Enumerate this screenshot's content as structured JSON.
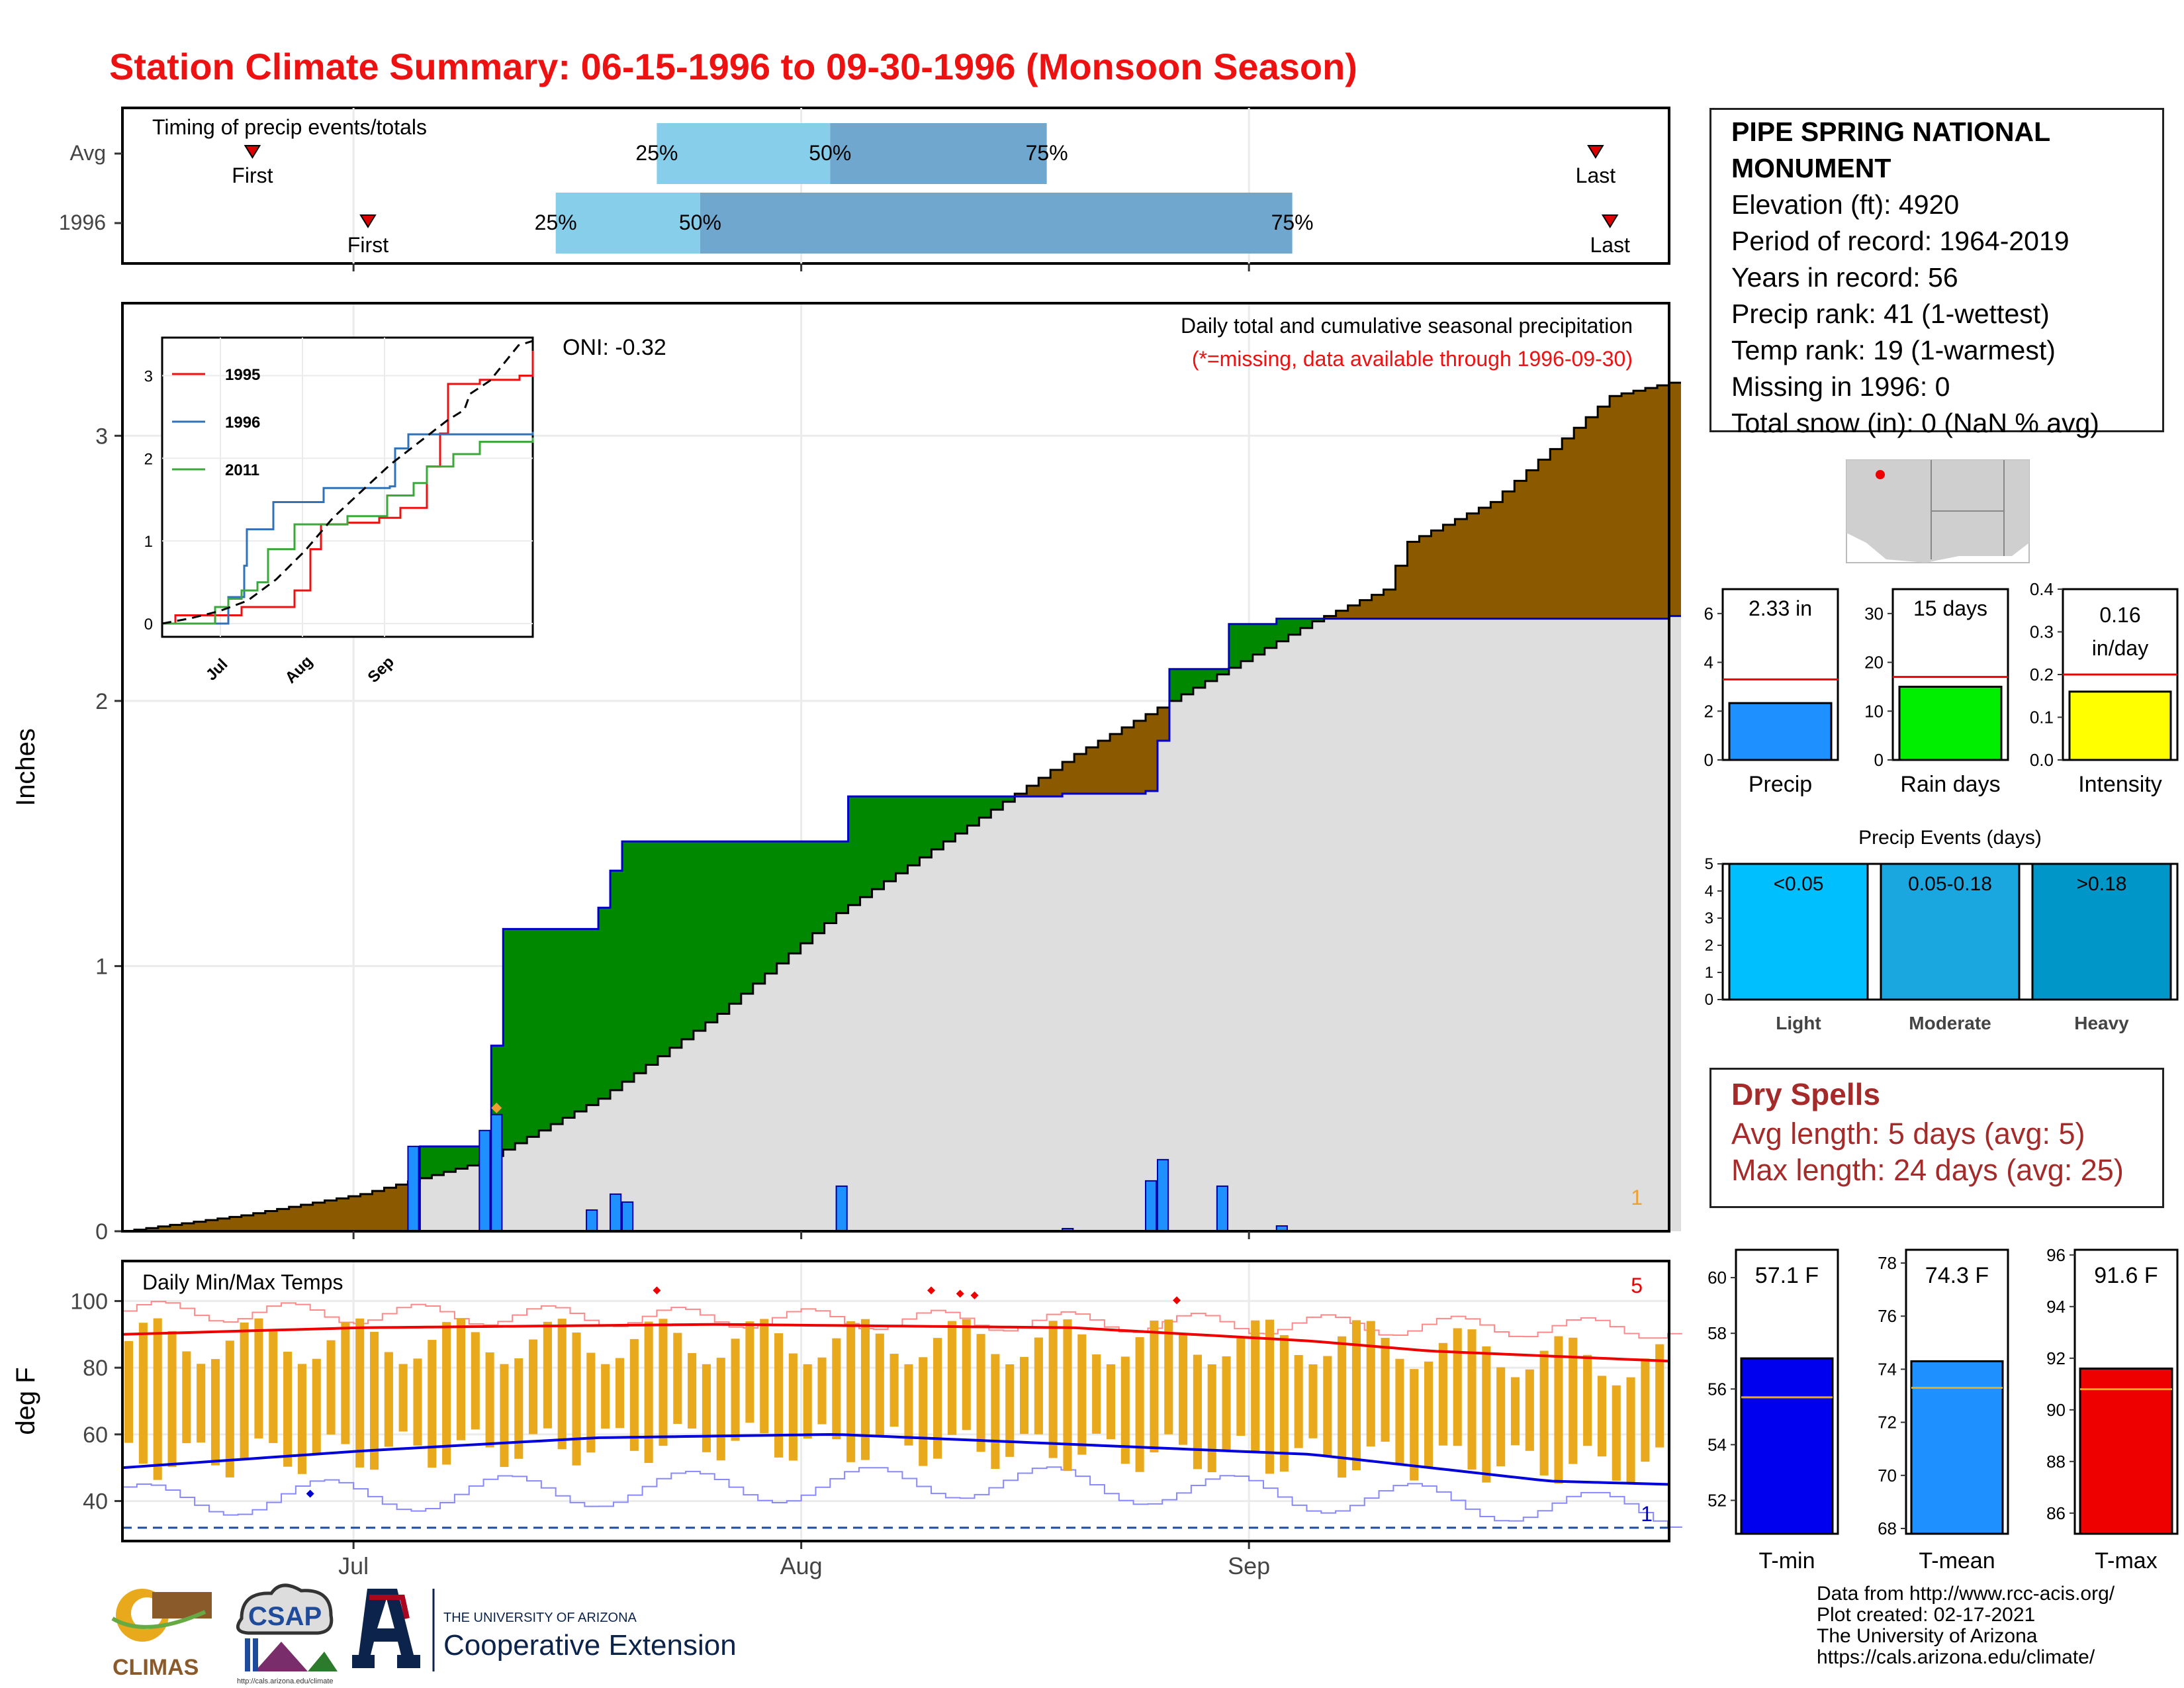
{
  "title": "Station Climate Summary: 06-15-1996 to 09-30-1996 (Monsoon Season)",
  "station": {
    "name": "PIPE SPRING NATIONAL MONUMENT",
    "lines": [
      "Elevation (ft): 4920",
      "Period of record: 1964-2019",
      "Years in record: 56",
      "Precip rank: 41 (1-wettest)",
      "Temp rank: 19 (1-warmest)",
      "Missing in 1996: 0",
      "Total snow (in): 0 (NaN % avg)"
    ]
  },
  "dry_spells": {
    "heading": "Dry Spells",
    "avg_line": "Avg length: 5 days (avg: 5)",
    "max_line": "Max length: 24 days (avg: 25)"
  },
  "credits": [
    "Data from http://www.rcc-acis.org/",
    "Plot created: 02-17-2021",
    "The University of Arizona",
    "https://cals.arizona.edu/climate/"
  ],
  "logos": {
    "climas": "CLIMAS",
    "csap": "CSAP",
    "csap_url": "http://cals.arizona.edu/climate",
    "ua_small": "THE UNIVERSITY OF ARIZONA",
    "ua_big": "Cooperative Extension"
  },
  "colors": {
    "title": "#ee1111",
    "avg_area": "#8b5a00",
    "surplus_area": "#008800",
    "daily_bar": "#1e90ff",
    "timing_light": "#87ceeb",
    "timing_dark": "#6fa7cf",
    "tmax": "#ee0000",
    "tmin": "#0000dd",
    "temp_bar": "#e8a91c",
    "dry_text": "#a52a2a"
  },
  "chart_data": [
    {
      "type": "bar",
      "panel": "timing",
      "title": "Timing of precip events/totals",
      "categories": [
        "Avg",
        "1996"
      ],
      "x_ticks": [
        "Jul",
        "Aug",
        "Sep"
      ],
      "series": [
        {
          "name": "Avg",
          "first": "06-24",
          "p25": "07-22",
          "p50": "08-03",
          "p75": "08-18",
          "last": "09-25"
        },
        {
          "name": "1996",
          "first": "07-02",
          "p25": "07-15",
          "p50": "07-25",
          "p75": "09-04",
          "last": "09-26"
        }
      ],
      "percent_labels": [
        "25%",
        "50%",
        "75%"
      ],
      "marker_labels": [
        "First",
        "Last"
      ]
    },
    {
      "type": "area",
      "panel": "precip",
      "title": "Daily total and cumulative seasonal precipitation",
      "subtitle": "(*=missing, data available through 1996-09-30)",
      "annotation": "ONI: -0.32",
      "corner_count": "1",
      "ylabel": "Inches",
      "ylim": [
        0,
        3.5
      ],
      "yticks": [
        0,
        1,
        2,
        3
      ],
      "x_ticks": [
        "Jul",
        "Aug",
        "Sep"
      ],
      "avg_cumulative_points": [
        [
          0,
          0
        ],
        [
          10,
          0.06
        ],
        [
          20,
          0.14
        ],
        [
          30,
          0.26
        ],
        [
          35,
          0.38
        ],
        [
          40,
          0.5
        ],
        [
          50,
          0.82
        ],
        [
          60,
          1.2
        ],
        [
          70,
          1.5
        ],
        [
          80,
          1.8
        ],
        [
          90,
          2.05
        ],
        [
          100,
          2.3
        ],
        [
          106,
          2.42
        ],
        [
          108,
          2.6
        ],
        [
          115,
          2.75
        ],
        [
          120,
          2.95
        ],
        [
          125,
          3.15
        ],
        [
          130,
          3.2
        ]
      ],
      "daily_precip": [
        {
          "day": 24,
          "value": 0.32
        },
        {
          "day": 30,
          "value": 0.38
        },
        {
          "day": 31,
          "value": 0.44
        },
        {
          "day": 39,
          "value": 0.08
        },
        {
          "day": 41,
          "value": 0.14
        },
        {
          "day": 42,
          "value": 0.11
        },
        {
          "day": 60,
          "value": 0.17
        },
        {
          "day": 79,
          "value": 0.01
        },
        {
          "day": 86,
          "value": 0.19
        },
        {
          "day": 87,
          "value": 0.27
        },
        {
          "day": 92,
          "value": 0.17
        },
        {
          "day": 97,
          "value": 0.02
        }
      ],
      "cumulative_1996": [
        [
          0,
          0
        ],
        [
          24,
          0
        ],
        [
          25,
          0.32
        ],
        [
          30,
          0.32
        ],
        [
          31,
          0.7
        ],
        [
          32,
          1.14
        ],
        [
          39,
          1.14
        ],
        [
          40,
          1.22
        ],
        [
          41,
          1.36
        ],
        [
          42,
          1.47
        ],
        [
          60,
          1.47
        ],
        [
          61,
          1.64
        ],
        [
          79,
          1.65
        ],
        [
          86,
          1.66
        ],
        [
          87,
          1.85
        ],
        [
          88,
          2.12
        ],
        [
          92,
          2.12
        ],
        [
          93,
          2.29
        ],
        [
          97,
          2.31
        ],
        [
          130,
          2.32
        ]
      ]
    },
    {
      "type": "line",
      "panel": "inset",
      "series": [
        {
          "name": "1995",
          "points": [
            [
              0,
              0
            ],
            [
              5,
              0.1
            ],
            [
              30,
              0.2
            ],
            [
              50,
              0.4
            ],
            [
              56,
              0.9
            ],
            [
              60,
              1.2
            ],
            [
              70,
              1.22
            ],
            [
              82,
              1.28
            ],
            [
              90,
              1.4
            ],
            [
              100,
              1.9
            ],
            [
              105,
              2.3
            ],
            [
              108,
              2.9
            ],
            [
              120,
              2.95
            ],
            [
              135,
              3.0
            ],
            [
              140,
              3.3
            ]
          ]
        },
        {
          "name": "1996",
          "points": [
            [
              0,
              0
            ],
            [
              24,
              0
            ],
            [
              25,
              0.32
            ],
            [
              31,
              0.7
            ],
            [
              32,
              1.14
            ],
            [
              42,
              1.47
            ],
            [
              61,
              1.64
            ],
            [
              86,
              1.66
            ],
            [
              88,
              2.12
            ],
            [
              93,
              2.29
            ],
            [
              140,
              2.32
            ]
          ]
        },
        {
          "name": "2011",
          "points": [
            [
              0,
              0
            ],
            [
              20,
              0.2
            ],
            [
              25,
              0.3
            ],
            [
              30,
              0.4
            ],
            [
              36,
              0.5
            ],
            [
              40,
              0.9
            ],
            [
              50,
              1.2
            ],
            [
              70,
              1.3
            ],
            [
              85,
              1.55
            ],
            [
              95,
              1.7
            ],
            [
              100,
              1.9
            ],
            [
              110,
              2.05
            ],
            [
              120,
              2.2
            ],
            [
              140,
              2.25
            ]
          ]
        }
      ],
      "average_dashed": true,
      "yticks": [
        0,
        1,
        2,
        3
      ],
      "x_ticks": [
        "Jul",
        "Aug",
        "Sep"
      ]
    },
    {
      "type": "bar",
      "panel": "mini-precip",
      "categories": [
        "Precip",
        "Rain days",
        "Intensity"
      ],
      "values": [
        2.33,
        15,
        0.16
      ],
      "averages": [
        3.3,
        17,
        0.2
      ],
      "labels": [
        "2.33 in",
        "15 days",
        "0.16 in/day"
      ],
      "ylims": [
        [
          0,
          7
        ],
        [
          0,
          35
        ],
        [
          0,
          0.4
        ]
      ],
      "yticks": [
        [
          0,
          2,
          4,
          6
        ],
        [
          0,
          10,
          20,
          30
        ],
        [
          0.0,
          0.1,
          0.2,
          0.3,
          0.4
        ]
      ]
    },
    {
      "type": "bar",
      "panel": "precip-events",
      "title": "Precip Events (days)",
      "categories": [
        "Light",
        "Moderate",
        "Heavy"
      ],
      "bin_labels": [
        "<0.05",
        "0.05-0.18",
        ">0.18"
      ],
      "values": [
        5,
        5,
        5
      ],
      "ylim": [
        0,
        5
      ],
      "yticks": [
        0,
        1,
        2,
        3,
        4,
        5
      ]
    },
    {
      "type": "line",
      "panel": "temps",
      "title": "Daily Min/Max Temps",
      "ylabel": "deg F",
      "ylim": [
        28,
        112
      ],
      "yticks": [
        40,
        60,
        80,
        100
      ],
      "x_ticks": [
        "Jul",
        "Aug",
        "Sep"
      ],
      "corner_top": "5",
      "corner_bottom": "1",
      "tmax_avg": [
        [
          0,
          90
        ],
        [
          20,
          92
        ],
        [
          50,
          93
        ],
        [
          80,
          92
        ],
        [
          100,
          88
        ],
        [
          110,
          85
        ],
        [
          130,
          82
        ]
      ],
      "tmin_avg": [
        [
          0,
          50
        ],
        [
          20,
          55
        ],
        [
          40,
          59
        ],
        [
          60,
          60
        ],
        [
          80,
          57
        ],
        [
          100,
          54
        ],
        [
          120,
          46
        ],
        [
          130,
          45
        ]
      ]
    },
    {
      "type": "bar",
      "panel": "mini-temps",
      "categories": [
        "T-min",
        "T-mean",
        "T-max"
      ],
      "values": [
        57.1,
        74.3,
        91.6
      ],
      "averages": [
        55.7,
        73.3,
        90.8
      ],
      "labels": [
        "57.1 F",
        "74.3 F",
        "91.6 F"
      ],
      "ylims": [
        [
          50.8,
          61
        ],
        [
          67.8,
          78.5
        ],
        [
          85.2,
          96.2
        ]
      ],
      "yticks": [
        [
          52,
          54,
          56,
          58,
          60
        ],
        [
          68,
          70,
          72,
          74,
          76,
          78
        ],
        [
          86,
          88,
          90,
          92,
          94,
          96
        ]
      ]
    }
  ]
}
